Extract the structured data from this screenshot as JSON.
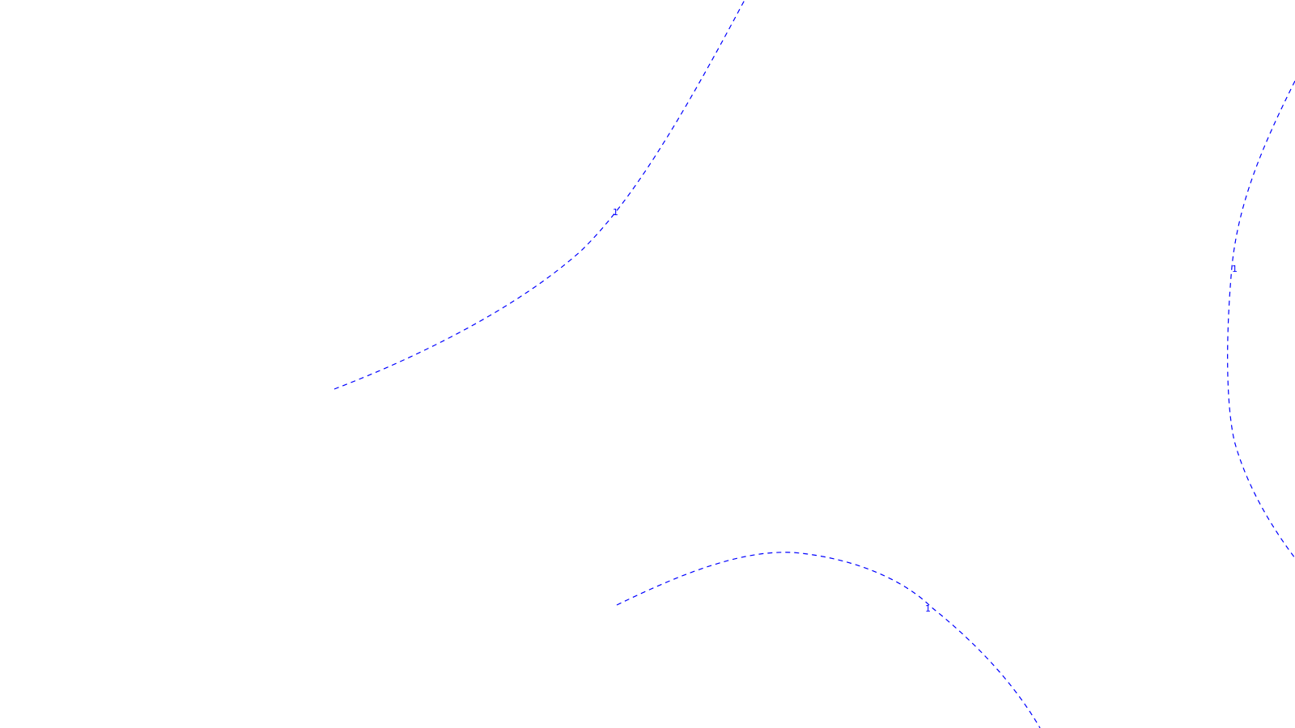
{
  "canvas": {
    "background": "#ffffff"
  },
  "contours": {
    "color": "#0000ff",
    "style": "dashed",
    "items": [
      {
        "label": "1"
      },
      {
        "label": "1"
      },
      {
        "label": "1"
      }
    ]
  }
}
